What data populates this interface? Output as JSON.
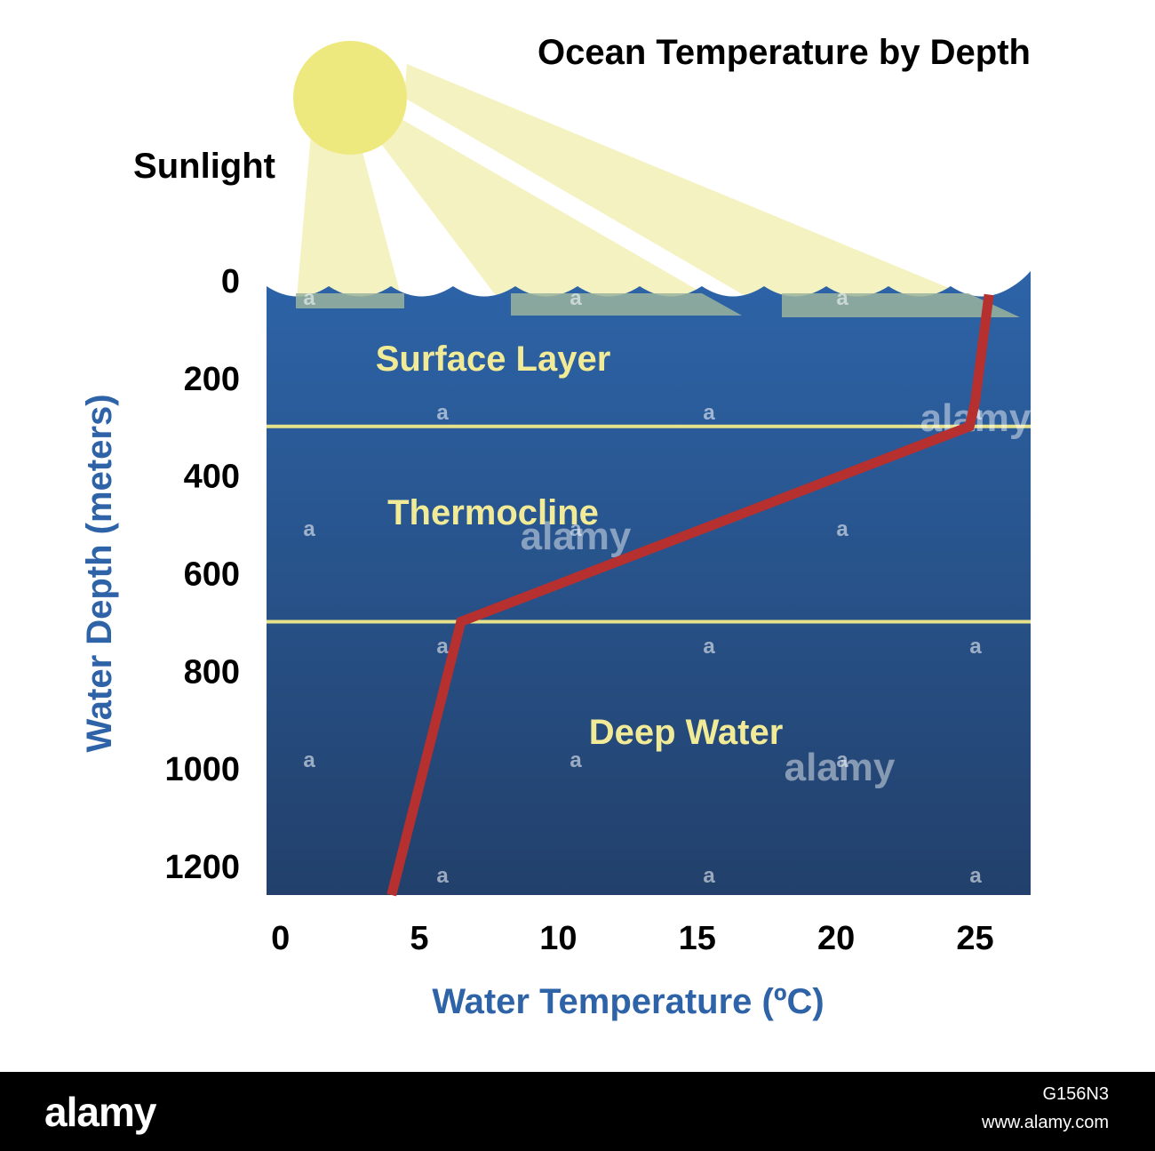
{
  "chart_data": {
    "type": "line",
    "title": "Ocean Temperature by Depth",
    "xlabel": "Water Temperature (ºC)",
    "ylabel": "Water Depth (meters)",
    "xlim": [
      -0.5,
      27
    ],
    "ylim": [
      1260,
      0
    ],
    "x_ticks": [
      0,
      5,
      10,
      15,
      20,
      25
    ],
    "y_ticks": [
      0,
      200,
      400,
      600,
      800,
      1000,
      1200
    ],
    "series": [
      {
        "color": "#b5302f",
        "points": [
          {
            "x": 25.5,
            "y": 30
          },
          {
            "x": 25,
            "y": 250
          },
          {
            "x": 24.8,
            "y": 300
          },
          {
            "x": 6.5,
            "y": 700
          },
          {
            "x": 4,
            "y": 1260
          }
        ]
      }
    ],
    "layers": [
      {
        "label": "Surface Layer",
        "label_depth": 160
      },
      {
        "label": "Thermocline",
        "label_depth": 475
      },
      {
        "label": "Deep Water",
        "label_depth": 925
      }
    ],
    "layer_boundaries": [
      300,
      700
    ],
    "sun_label": "Sunlight",
    "grid": false,
    "legend": "none"
  },
  "colors": {
    "water_top": "#2d64a8",
    "water_bottom": "#22406b",
    "boundary": "#e6e28c",
    "sun": "#ede97e",
    "beam": "#f3f0b6"
  },
  "watermark": {
    "small": "a",
    "brand": "alamy",
    "image_code": "G156N3",
    "site": "www.alamy.com"
  }
}
